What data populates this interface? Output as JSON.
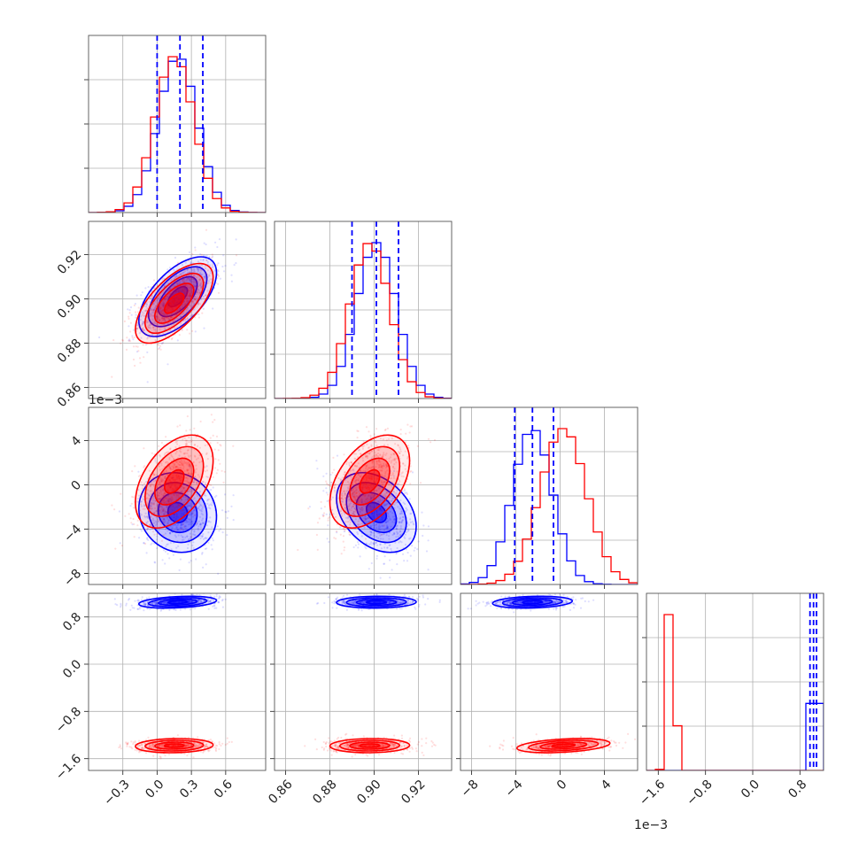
{
  "chart_data": {
    "type": "corner",
    "parameters": [
      {
        "ticks": [
          -0.3,
          0.0,
          0.3,
          0.6
        ],
        "tick_labels": [
          "−0.3",
          "0.0",
          "0.3",
          "0.6"
        ],
        "range": [
          -0.6,
          0.95
        ]
      },
      {
        "ticks": [
          0.86,
          0.88,
          0.9,
          0.92
        ],
        "tick_labels": [
          "0.86",
          "0.88",
          "0.90",
          "0.92"
        ],
        "range": [
          0.855,
          0.935
        ]
      },
      {
        "ticks": [
          -8,
          -4,
          0,
          4
        ],
        "tick_labels": [
          "−8",
          "−4",
          "0",
          "4"
        ],
        "range": [
          -9.0,
          7.0
        ],
        "offset_text": "1e−3"
      },
      {
        "ticks": [
          -1.6,
          -0.8,
          0.0,
          0.8
        ],
        "tick_labels": [
          "−1.6",
          "−0.8",
          "0.0",
          "0.8"
        ],
        "range": [
          -1.8,
          1.2
        ]
      }
    ],
    "series": [
      {
        "color": "#0000ff",
        "means": [
          0.18,
          0.901,
          -2.5,
          1.05
        ],
        "sds": [
          0.17,
          0.009,
          1.8,
          0.05
        ],
        "corr": {
          "1-0": 0.6,
          "2-0": -0.1,
          "2-1": -0.35,
          "3-0": 0.3,
          "3-1": 0.05,
          "3-2": 0.2
        },
        "quantiles": [
          [
            0.0,
            0.2,
            0.4
          ],
          [
            0.89,
            0.901,
            0.911
          ],
          [
            -4.1,
            -2.5,
            -0.6
          ],
          [
            0.97,
            1.03,
            1.08
          ]
        ]
      },
      {
        "color": "#ff0000",
        "means": [
          0.15,
          0.898,
          0.3,
          -1.38
        ],
        "sds": [
          0.17,
          0.009,
          2.1,
          0.06
        ],
        "corr": {
          "1-0": 0.65,
          "2-0": 0.45,
          "2-1": 0.45,
          "3-0": 0.1,
          "3-1": 0.05,
          "3-2": 0.35
        }
      }
    ],
    "hist_bins": 20,
    "quantile_line_color": "#0000ff",
    "grid": true
  }
}
